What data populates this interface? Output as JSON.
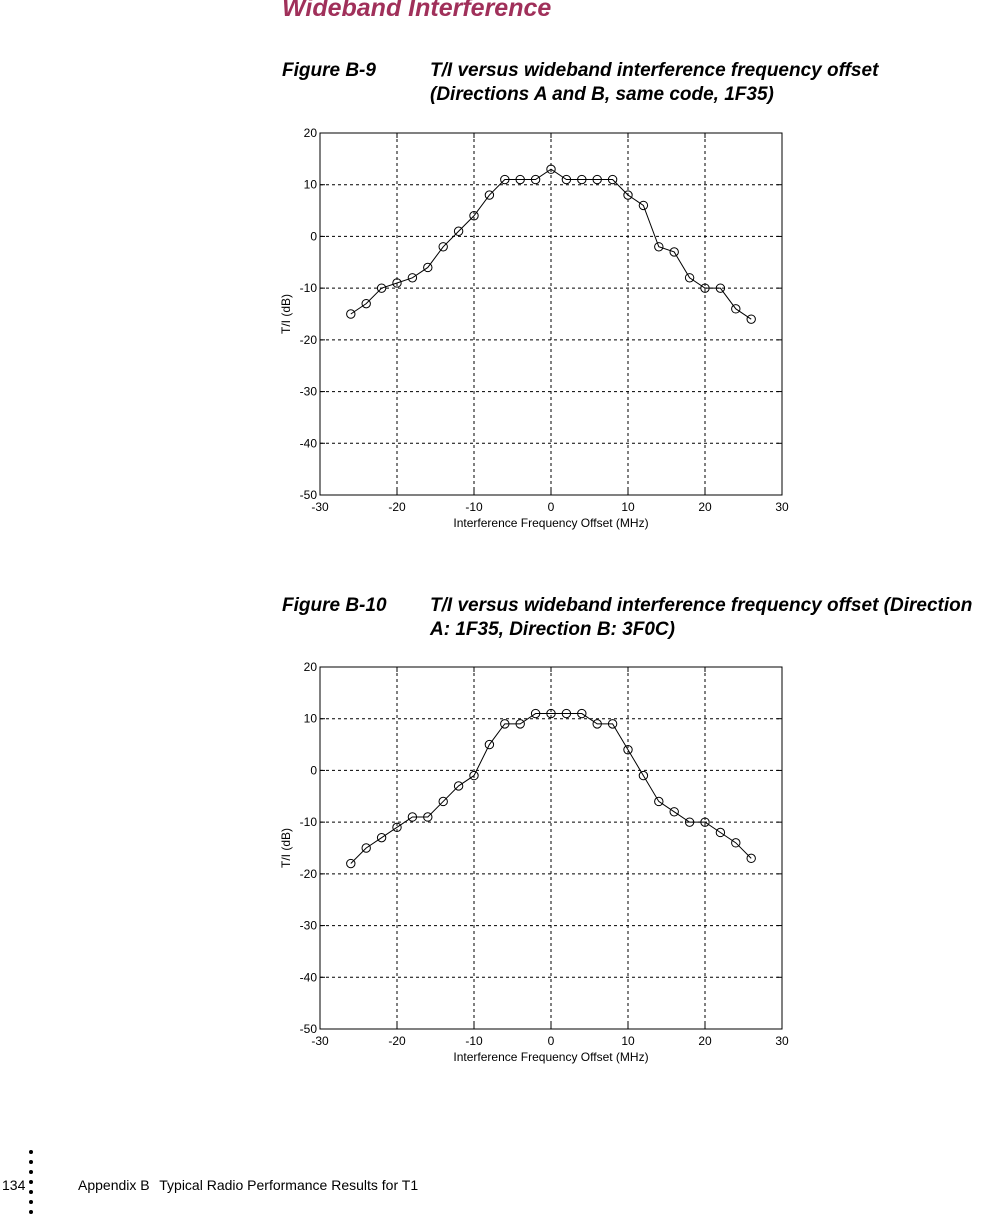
{
  "section_title": "Wideband Interference",
  "figures": [
    {
      "label": "Figure B-9",
      "caption_line1": "T/I versus wideband interference frequency offset",
      "caption_line2": "(Directions A and B, same code, 1F35)"
    },
    {
      "label": "Figure B-10",
      "caption_line1": "T/I versus wideband interference frequency offset (Direction",
      "caption_line2": "A: 1F35, Direction B: 3F0C)"
    }
  ],
  "footer": {
    "page_number": "134",
    "appendix": "Appendix B",
    "title": "Typical Radio Performance Results for T1"
  },
  "chart_data": [
    {
      "type": "line",
      "title": "",
      "xlabel": "Interference Frequency Offset (MHz)",
      "ylabel": "T/I (dB)",
      "xlim": [
        -30,
        30
      ],
      "ylim": [
        -50,
        20
      ],
      "xticks": [
        -30,
        -20,
        -10,
        0,
        10,
        20,
        30
      ],
      "yticks": [
        -50,
        -40,
        -30,
        -20,
        -10,
        0,
        10,
        20
      ],
      "grid": true,
      "marker": "circle",
      "x": [
        -26,
        -24,
        -22,
        -20,
        -18,
        -16,
        -14,
        -12,
        -10,
        -8,
        -6,
        -4,
        -2,
        0,
        2,
        4,
        6,
        8,
        10,
        12,
        14,
        16,
        18,
        20,
        22,
        24,
        26
      ],
      "y": [
        -15,
        -13,
        -10,
        -9,
        -8,
        -6,
        -2,
        1,
        4,
        8,
        11,
        11,
        11,
        13,
        11,
        11,
        11,
        11,
        8,
        6,
        -2,
        -3,
        -8,
        -10,
        -10,
        -14,
        -16
      ]
    },
    {
      "type": "line",
      "title": "",
      "xlabel": "Interference Frequency Offset (MHz)",
      "ylabel": "T/I (dB)",
      "xlim": [
        -30,
        30
      ],
      "ylim": [
        -50,
        20
      ],
      "xticks": [
        -30,
        -20,
        -10,
        0,
        10,
        20,
        30
      ],
      "yticks": [
        -50,
        -40,
        -30,
        -20,
        -10,
        0,
        10,
        20
      ],
      "grid": true,
      "marker": "circle",
      "x": [
        -26,
        -24,
        -22,
        -20,
        -18,
        -16,
        -14,
        -12,
        -10,
        -8,
        -6,
        -4,
        -2,
        0,
        2,
        4,
        6,
        8,
        10,
        12,
        14,
        16,
        18,
        20,
        22,
        24,
        26
      ],
      "y": [
        -18,
        -15,
        -13,
        -11,
        -9,
        -9,
        -6,
        -3,
        -1,
        5,
        9,
        9,
        11,
        11,
        11,
        11,
        9,
        9,
        4,
        -1,
        -6,
        -8,
        -10,
        -10,
        -12,
        -14,
        -17
      ]
    }
  ]
}
